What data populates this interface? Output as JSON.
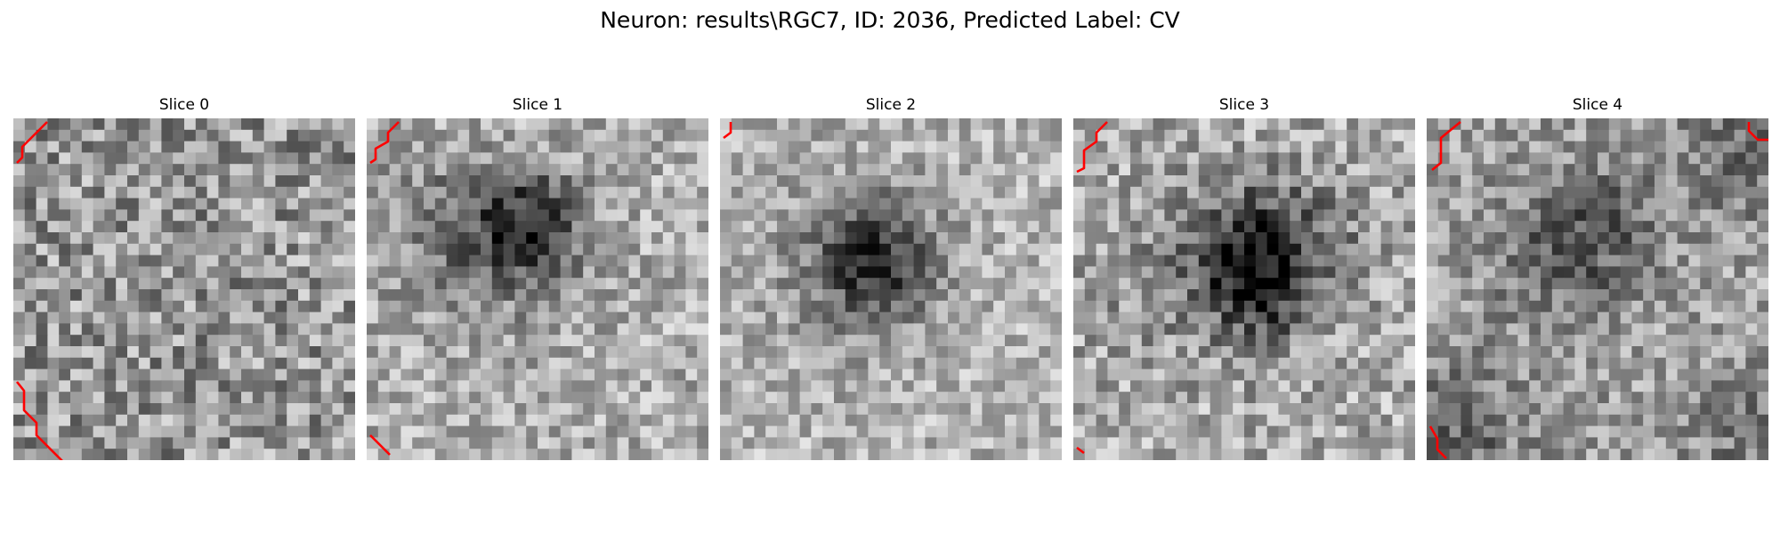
{
  "figure": {
    "title": "Neuron: results\\RGC7, ID: 2036, Predicted Label: CV"
  },
  "panels": [
    {
      "title": "Slice 0"
    },
    {
      "title": "Slice 1"
    },
    {
      "title": "Slice 2"
    },
    {
      "title": "Slice 3"
    },
    {
      "title": "Slice 4"
    }
  ],
  "colormap": "gray",
  "contour_color": "#ff0000"
}
